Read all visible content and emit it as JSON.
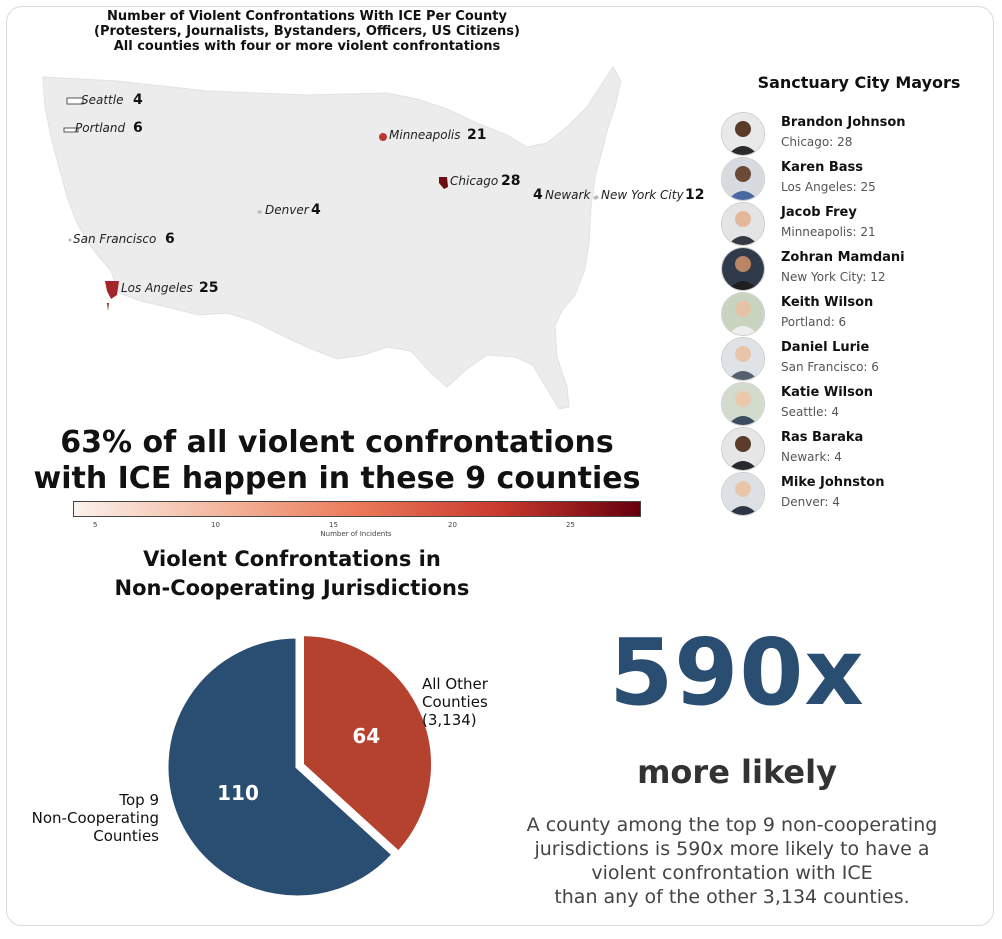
{
  "map": {
    "title_lines": [
      "Number of Violent Confrontations With ICE Per County",
      "(Protesters, Journalists, Bystanders, Officers, US Citizens)",
      "All counties with four or more violent confrontations"
    ],
    "cities": [
      {
        "name": "Seattle",
        "count": "4"
      },
      {
        "name": "Portland",
        "count": "6"
      },
      {
        "name": "Minneapolis",
        "count": "21"
      },
      {
        "name": "Chicago",
        "count": "28"
      },
      {
        "name": "Newark",
        "count": "4"
      },
      {
        "name": "New York City",
        "count": "12"
      },
      {
        "name": "Denver",
        "count": "4"
      },
      {
        "name": "San Francisco",
        "count": "6"
      },
      {
        "name": "Los Angeles",
        "count": "25"
      }
    ],
    "colorbar": {
      "ticks": [
        "5",
        "10",
        "15",
        "20",
        "25"
      ],
      "label": "Number of Incidents",
      "low_color": "#fbf1ec",
      "high_color": "#67000d"
    }
  },
  "headline": {
    "line1": "63% of all violent confrontations",
    "line2": "with ICE happen in these 9 counties"
  },
  "mayors": {
    "title": "Sanctuary City Mayors",
    "items": [
      {
        "name": "Brandon Johnson",
        "detail": "Chicago: 28"
      },
      {
        "name": "Karen Bass",
        "detail": "Los Angeles: 25"
      },
      {
        "name": "Jacob Frey",
        "detail": "Minneapolis: 21"
      },
      {
        "name": "Zohran Mamdani",
        "detail": "New York City: 12"
      },
      {
        "name": "Keith Wilson",
        "detail": "Portland: 6"
      },
      {
        "name": "Daniel Lurie",
        "detail": "San Francisco: 6"
      },
      {
        "name": "Katie Wilson",
        "detail": "Seattle: 4"
      },
      {
        "name": "Ras Baraka",
        "detail": "Newark: 4"
      },
      {
        "name": "Mike Johnston",
        "detail": "Denver: 4"
      }
    ]
  },
  "chart_data": {
    "type": "pie",
    "title": "Violent Confrontations in Non-Cooperating Jurisdictions",
    "title_lines": [
      "Violent Confrontations in",
      "Non-Cooperating Jurisdictions"
    ],
    "slices": [
      {
        "label_lines": [
          "All Other",
          "Counties",
          "(3,134)"
        ],
        "value": 64,
        "value_label": "64",
        "color": "#b5412f"
      },
      {
        "label_lines": [
          "Top 9",
          "Non-Cooperating",
          "Counties"
        ],
        "value": 110,
        "value_label": "110",
        "color": "#2a4d72"
      }
    ]
  },
  "stat": {
    "multiplier": "590x",
    "caption": "more likely",
    "description_lines": [
      "A county among the top 9 non-cooperating",
      "jurisdictions is 590x more likely to have a",
      "violent confrontation with ICE",
      "than any of the other 3,134 counties."
    ]
  }
}
